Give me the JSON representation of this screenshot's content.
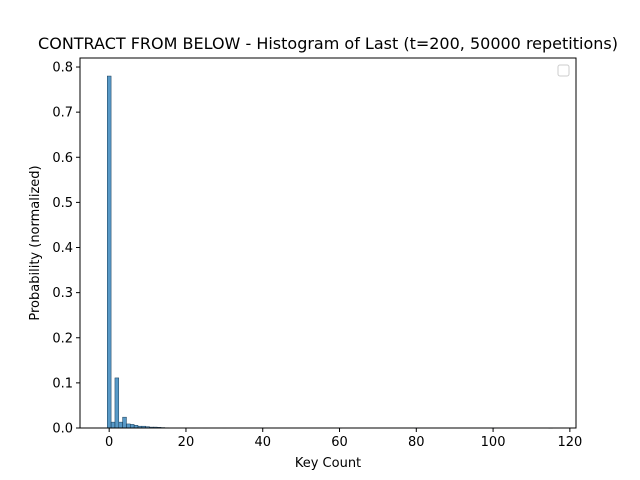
{
  "chart_data": {
    "type": "bar",
    "title": "CONTRACT FROM BELOW - Histogram of Last (t=200, 50000 repetitions)",
    "xlabel": "Key Count",
    "ylabel": "Probability (normalized)",
    "xlim": [
      -7.6,
      121.6
    ],
    "ylim": [
      0,
      0.82
    ],
    "xticks": [
      0,
      20,
      40,
      60,
      80,
      100,
      120
    ],
    "yticks": [
      0.0,
      0.1,
      0.2,
      0.3,
      0.4,
      0.5,
      0.6,
      0.7,
      0.8
    ],
    "grid": false,
    "legend": {
      "placement": "top-right",
      "entries": []
    },
    "bar_color": "#1f77b4",
    "bin_width": 1,
    "bins": [
      {
        "x": 0,
        "value": 0.78
      },
      {
        "x": 1,
        "value": 0.013
      },
      {
        "x": 2,
        "value": 0.111
      },
      {
        "x": 3,
        "value": 0.013
      },
      {
        "x": 4,
        "value": 0.024
      },
      {
        "x": 5,
        "value": 0.009
      },
      {
        "x": 6,
        "value": 0.008
      },
      {
        "x": 7,
        "value": 0.006
      },
      {
        "x": 8,
        "value": 0.004
      },
      {
        "x": 9,
        "value": 0.004
      },
      {
        "x": 10,
        "value": 0.003
      },
      {
        "x": 11,
        "value": 0.002
      },
      {
        "x": 12,
        "value": 0.002
      },
      {
        "x": 13,
        "value": 0.0015
      },
      {
        "x": 14,
        "value": 0.001
      },
      {
        "x": 15,
        "value": 0.0006
      },
      {
        "x": 16,
        "value": 0.0005
      },
      {
        "x": 17,
        "value": 0.0004
      },
      {
        "x": 18,
        "value": 0.0003
      },
      {
        "x": 19,
        "value": 0.0003
      },
      {
        "x": 20,
        "value": 0.0002
      },
      {
        "x": 22,
        "value": 0.0001
      },
      {
        "x": 25,
        "value": 0.0001
      },
      {
        "x": 30,
        "value": 0.0001
      },
      {
        "x": 40,
        "value": 5e-05
      },
      {
        "x": 60,
        "value": 3e-05
      },
      {
        "x": 80,
        "value": 2e-05
      },
      {
        "x": 100,
        "value": 2e-05
      },
      {
        "x": 115,
        "value": 2e-05
      }
    ]
  }
}
